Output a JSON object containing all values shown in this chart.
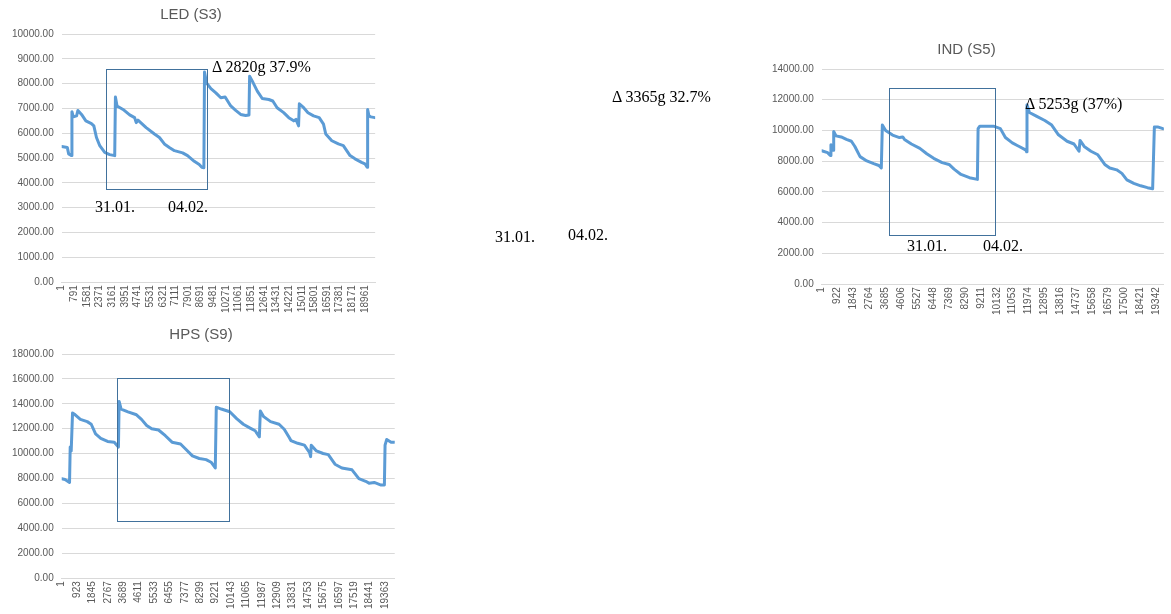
{
  "chart_data": [
    {
      "type": "line",
      "title": "LED (S3)",
      "xlim": [
        1,
        19600
      ],
      "ylim": [
        0,
        10000
      ],
      "xticks": [
        1,
        791,
        1581,
        2371,
        3161,
        3951,
        4741,
        5531,
        6321,
        7111,
        7901,
        8691,
        9481,
        10271,
        11061,
        11851,
        12641,
        13431,
        14221,
        15011,
        15801,
        16591,
        17381,
        18171,
        18961
      ],
      "yticks": [
        {
          "value": 0,
          "label": "0.00"
        },
        {
          "value": 1000,
          "label": "1000.00"
        },
        {
          "value": 2000,
          "label": "2000.00"
        },
        {
          "value": 3000,
          "label": "3000.00"
        },
        {
          "value": 4000,
          "label": "4000.00"
        },
        {
          "value": 5000,
          "label": "5000.00"
        },
        {
          "value": 6000,
          "label": "6000.00"
        },
        {
          "value": 7000,
          "label": "7000.00"
        },
        {
          "value": 8000,
          "label": "8000.00"
        },
        {
          "value": 9000,
          "label": "9000.00"
        },
        {
          "value": 10000,
          "label": "10000.00"
        }
      ],
      "grid": "y",
      "legend": false,
      "marker": "none",
      "line_style": "solid",
      "series": [
        {
          "color": "#5b9bd5",
          "x": [
            1,
            350,
            435,
            620,
            640,
            725,
            930,
            1015,
            1240,
            1510,
            1860,
            2010,
            2175,
            2380,
            2690,
            3000,
            3315,
            3360,
            3460,
            3835,
            4250,
            4560,
            4660,
            4770,
            5280,
            5800,
            6110,
            6420,
            6730,
            7050,
            7560,
            7870,
            8290,
            8600,
            8760,
            8890,
            8930,
            9055,
            9330,
            9640,
            9950,
            10220,
            10570,
            10880,
            11190,
            11500,
            11710,
            11750,
            11920,
            12230,
            12540,
            12950,
            13200,
            13470,
            13880,
            14200,
            14510,
            14650,
            14770,
            14810,
            14860,
            15130,
            15400,
            15750,
            16100,
            16370,
            16510,
            16890,
            17300,
            17610,
            17820,
            18030,
            18340,
            18750,
            18960,
            19100,
            19130,
            19210,
            19330,
            19580
          ],
          "values": [
            5470,
            5430,
            5170,
            5100,
            6870,
            6660,
            6700,
            6920,
            6760,
            6500,
            6390,
            6300,
            5830,
            5500,
            5230,
            5140,
            5100,
            7460,
            7100,
            6960,
            6740,
            6630,
            6430,
            6530,
            6230,
            5970,
            5830,
            5570,
            5430,
            5300,
            5210,
            5100,
            4870,
            4740,
            4630,
            4610,
            8470,
            8030,
            7800,
            7630,
            7430,
            7460,
            7100,
            6920,
            6760,
            6720,
            6740,
            8300,
            8100,
            7700,
            7400,
            7360,
            7300,
            7030,
            6830,
            6630,
            6500,
            6560,
            6370,
            6300,
            7190,
            7030,
            6830,
            6700,
            6630,
            6370,
            5970,
            5700,
            5570,
            5500,
            5300,
            5100,
            4970,
            4830,
            4770,
            4630,
            6960,
            6700,
            6660,
            6630
          ]
        }
      ],
      "annotations": [
        "31.01.",
        "04.02.",
        "Δ 2820g 37.9%"
      ]
    },
    {
      "type": "other",
      "annotations": [
        "Δ 3365g 32.7%",
        "31.01.",
        "04.02."
      ]
    },
    {
      "type": "line",
      "title": "IND (S5)",
      "xlim": [
        1,
        19800
      ],
      "ylim": [
        0,
        14000
      ],
      "xticks": [
        1,
        922,
        1843,
        2764,
        3685,
        4606,
        5527,
        6448,
        7369,
        8290,
        9211,
        10132,
        11053,
        11974,
        12895,
        13816,
        14737,
        15658,
        16579,
        17500,
        18421,
        19342
      ],
      "yticks": [
        {
          "value": 0,
          "label": "0.00"
        },
        {
          "value": 2000,
          "label": "2000.00"
        },
        {
          "value": 4000,
          "label": "4000.00"
        },
        {
          "value": 6000,
          "label": "6000.00"
        },
        {
          "value": 8000,
          "label": "8000.00"
        },
        {
          "value": 10000,
          "label": "10000.00"
        },
        {
          "value": 12000,
          "label": "12000.00"
        },
        {
          "value": 14000,
          "label": "14000.00"
        }
      ],
      "grid": "y",
      "legend": false,
      "marker": "none",
      "line_style": "solid",
      "series": [
        {
          "color": "#5b9bd5",
          "x": [
            1,
            340,
            500,
            535,
            595,
            675,
            695,
            830,
            1130,
            1430,
            1720,
            1920,
            2220,
            2610,
            3010,
            3310,
            3450,
            3510,
            3700,
            4100,
            4500,
            4690,
            4790,
            5190,
            5680,
            6080,
            6480,
            6970,
            7370,
            7660,
            8060,
            8550,
            9010,
            9050,
            9150,
            9940,
            10340,
            10630,
            11030,
            11430,
            11820,
            11860,
            11880,
            12020,
            12420,
            12910,
            13310,
            13700,
            14200,
            14600,
            14890,
            14950,
            15190,
            15580,
            15980,
            16380,
            16670,
            17070,
            17370,
            17660,
            18060,
            18460,
            18850,
            19150,
            19250,
            19440,
            19740
          ],
          "values": [
            8680,
            8560,
            8370,
            9070,
            8720,
            8720,
            9930,
            9650,
            9580,
            9420,
            9300,
            8960,
            8300,
            8020,
            7840,
            7720,
            7560,
            10350,
            10000,
            9700,
            9540,
            9580,
            9420,
            9120,
            8840,
            8490,
            8190,
            7910,
            7790,
            7490,
            7140,
            6930,
            6820,
            10120,
            10280,
            10280,
            10120,
            9540,
            9190,
            8960,
            8720,
            8610,
            11680,
            11170,
            10930,
            10650,
            10350,
            9720,
            9300,
            9120,
            8650,
            9350,
            8960,
            8650,
            8420,
            7790,
            7560,
            7440,
            7210,
            6790,
            6560,
            6400,
            6280,
            6210,
            10230,
            10230,
            10120
          ]
        }
      ],
      "annotations": [
        "31.01.",
        "04.02.",
        "Δ 5253g (37%)"
      ]
    },
    {
      "type": "line",
      "title": "HPS (S9)",
      "xlim": [
        1,
        19950
      ],
      "ylim": [
        0,
        18000
      ],
      "xticks": [
        1,
        923,
        1845,
        2767,
        3689,
        4611,
        5533,
        6455,
        7377,
        8299,
        9221,
        10143,
        11065,
        11987,
        12909,
        13831,
        14753,
        15675,
        16597,
        17519,
        18441,
        19363
      ],
      "yticks": [
        {
          "value": 0,
          "label": "0.00"
        },
        {
          "value": 2000,
          "label": "2000.00"
        },
        {
          "value": 4000,
          "label": "4000.00"
        },
        {
          "value": 6000,
          "label": "6000.00"
        },
        {
          "value": 8000,
          "label": "8000.00"
        },
        {
          "value": 10000,
          "label": "10000.00"
        },
        {
          "value": 12000,
          "label": "12000.00"
        },
        {
          "value": 14000,
          "label": "14000.00"
        },
        {
          "value": 16000,
          "label": "16000.00"
        },
        {
          "value": 18000,
          "label": "18000.00"
        }
      ],
      "grid": "y",
      "legend": false,
      "marker": "none",
      "line_style": "solid",
      "series": [
        {
          "color": "#5b9bd5",
          "x": [
            1,
            200,
            470,
            510,
            570,
            650,
            810,
            1120,
            1530,
            1770,
            2030,
            2340,
            2750,
            3150,
            3400,
            3440,
            3560,
            3970,
            4480,
            4780,
            5090,
            5390,
            5800,
            6210,
            6610,
            7120,
            7420,
            7830,
            8240,
            8650,
            8950,
            9200,
            9260,
            9560,
            10070,
            10480,
            10880,
            11290,
            11590,
            11840,
            11900,
            12100,
            12510,
            13020,
            13330,
            13630,
            13730,
            14140,
            14540,
            14850,
            14910,
            14950,
            15260,
            15660,
            15970,
            16370,
            16780,
            17390,
            17800,
            18210,
            18410,
            18720,
            19130,
            19330,
            19370,
            19470,
            19730,
            19930
          ],
          "values": [
            7990,
            7930,
            7690,
            10530,
            10220,
            13270,
            13120,
            12750,
            12570,
            12360,
            11590,
            11230,
            10980,
            10920,
            10530,
            14190,
            13580,
            13360,
            13120,
            12750,
            12260,
            11990,
            11900,
            11440,
            10920,
            10770,
            10370,
            9820,
            9610,
            9520,
            9310,
            8850,
            13730,
            13580,
            13360,
            12810,
            12360,
            12050,
            11840,
            11350,
            13420,
            12970,
            12570,
            12360,
            11960,
            11290,
            11050,
            10830,
            10680,
            10070,
            9760,
            10680,
            10220,
            10010,
            9920,
            9150,
            8850,
            8700,
            7990,
            7780,
            7630,
            7690,
            7480,
            7480,
            10680,
            11140,
            10920,
            10920
          ]
        }
      ]
    }
  ]
}
